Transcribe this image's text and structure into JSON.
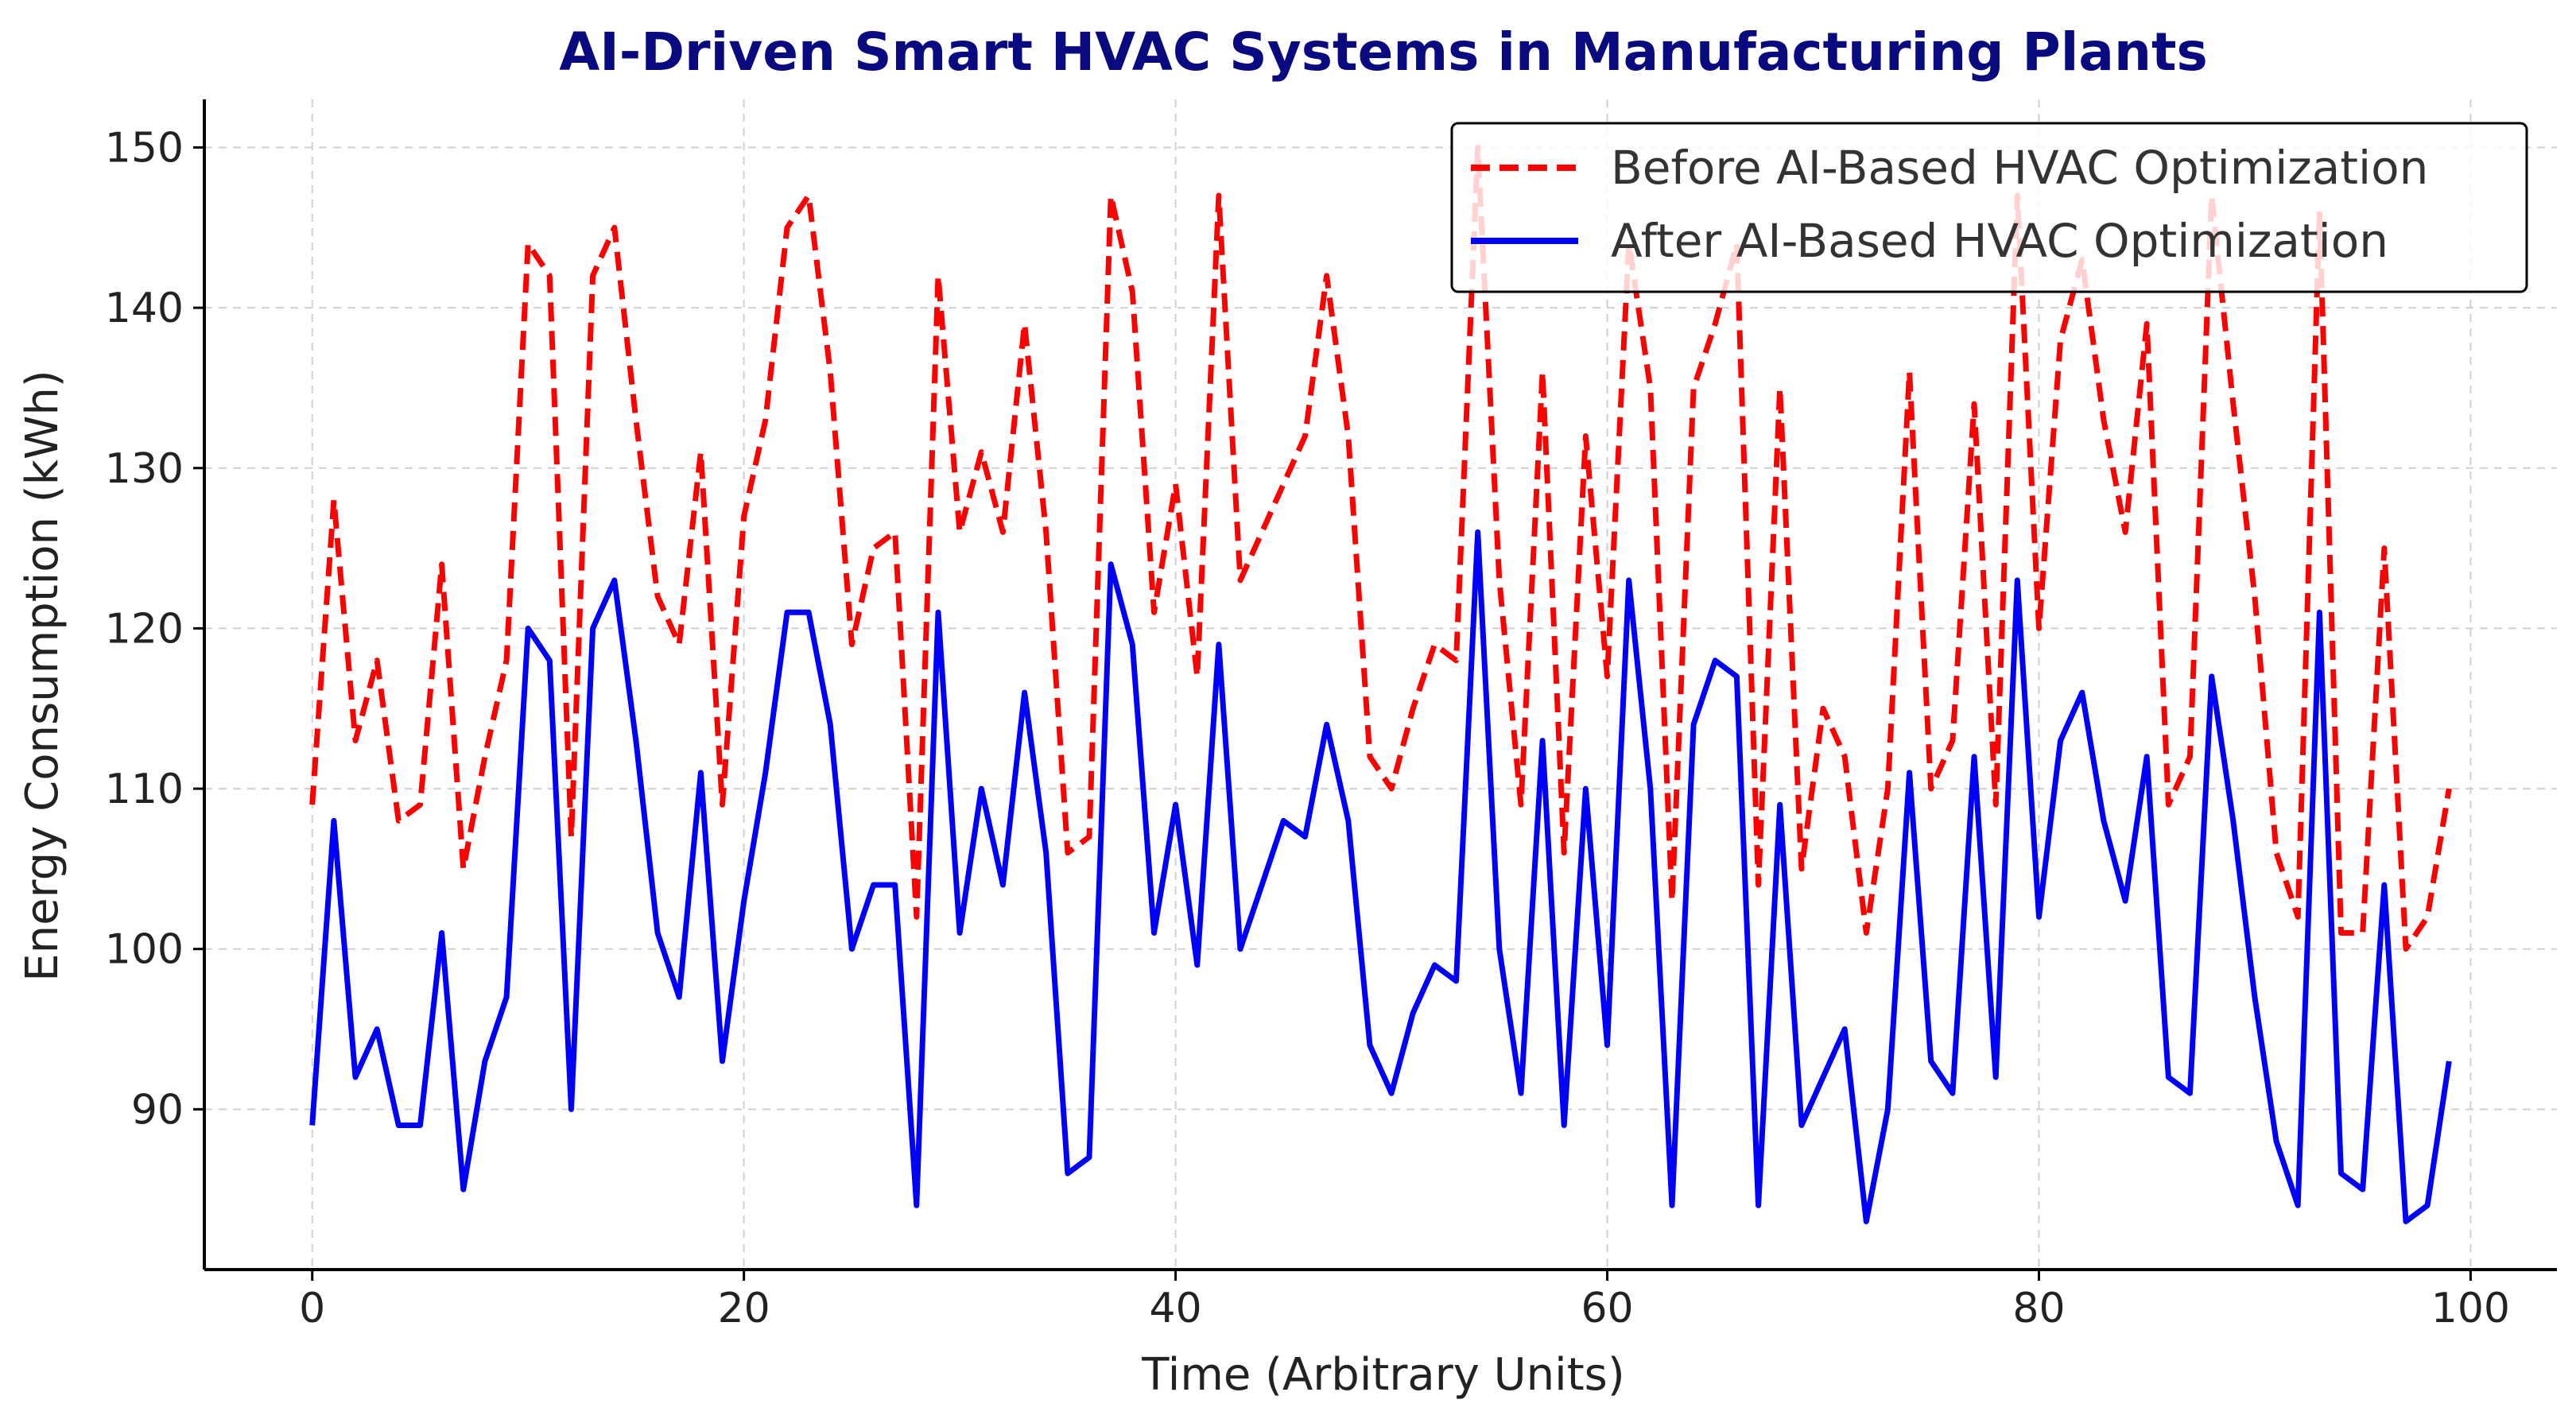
{
  "colors": {
    "title": "#0a0a80",
    "before": "#ff0000",
    "after": "#0000ff",
    "grid": "#d0d0d0",
    "axis": "#000000"
  },
  "chart_data": {
    "type": "line",
    "title": "AI-Driven Smart HVAC Systems in Manufacturing Plants",
    "xlabel": "Time (Arbitrary Units)",
    "ylabel": "Energy Consumption (kWh)",
    "xlim": [
      -5,
      104
    ],
    "ylim": [
      80,
      153
    ],
    "xticks": [
      0,
      20,
      40,
      60,
      80,
      100
    ],
    "yticks": [
      90,
      100,
      110,
      120,
      130,
      140,
      150
    ],
    "grid": true,
    "legend_position": "top-right",
    "series": [
      {
        "name": "Before AI-Based HVAC Optimization",
        "style": "dashed",
        "color": "#ff0000",
        "x": [
          0,
          1,
          2,
          3,
          4,
          5,
          6,
          7,
          8,
          9,
          10,
          11,
          12,
          13,
          14,
          15,
          16,
          17,
          18,
          19,
          20,
          21,
          22,
          23,
          24,
          25,
          26,
          27,
          28,
          29,
          30,
          31,
          32,
          33,
          34,
          35,
          36,
          37,
          38,
          39,
          40,
          41,
          42,
          43,
          44,
          45,
          46,
          47,
          48,
          49,
          50,
          51,
          52,
          53,
          54,
          55,
          56,
          57,
          58,
          59,
          60,
          61,
          62,
          63,
          64,
          65,
          66,
          67,
          68,
          69,
          70,
          71,
          72,
          73,
          74,
          75,
          76,
          77,
          78,
          79,
          80,
          81,
          82,
          83,
          84,
          85,
          86,
          87,
          88,
          89,
          90,
          91,
          92,
          93,
          94,
          95,
          96,
          97,
          98,
          99
        ],
        "values": [
          109,
          128,
          113,
          118,
          108,
          109,
          124,
          105,
          112,
          118,
          144,
          142,
          107,
          142,
          145,
          133,
          122,
          119,
          131,
          109,
          127,
          133,
          145,
          147,
          136,
          119,
          125,
          126,
          102,
          142,
          126,
          131,
          126,
          139,
          126,
          106,
          107,
          147,
          141,
          121,
          129,
          117,
          147,
          123,
          126,
          129,
          132,
          142,
          132,
          112,
          110,
          115,
          119,
          118,
          150,
          123,
          109,
          136,
          106,
          132,
          117,
          144,
          135,
          103,
          135,
          139,
          144,
          104,
          135,
          105,
          115,
          112,
          101,
          110,
          136,
          110,
          113,
          134,
          109,
          147,
          120,
          138,
          143,
          133,
          126,
          139,
          109,
          112,
          147,
          134,
          122,
          106,
          102,
          146,
          101,
          101,
          125,
          100,
          102,
          110
        ]
      },
      {
        "name": "After AI-Based HVAC Optimization",
        "style": "solid",
        "color": "#0000ff",
        "x": [
          0,
          1,
          2,
          3,
          4,
          5,
          6,
          7,
          8,
          9,
          10,
          11,
          12,
          13,
          14,
          15,
          16,
          17,
          18,
          19,
          20,
          21,
          22,
          23,
          24,
          25,
          26,
          27,
          28,
          29,
          30,
          31,
          32,
          33,
          34,
          35,
          36,
          37,
          38,
          39,
          40,
          41,
          42,
          43,
          44,
          45,
          46,
          47,
          48,
          49,
          50,
          51,
          52,
          53,
          54,
          55,
          56,
          57,
          58,
          59,
          60,
          61,
          62,
          63,
          64,
          65,
          66,
          67,
          68,
          69,
          70,
          71,
          72,
          73,
          74,
          75,
          76,
          77,
          78,
          79,
          80,
          81,
          82,
          83,
          84,
          85,
          86,
          87,
          88,
          89,
          90,
          91,
          92,
          93,
          94,
          95,
          96,
          97,
          98,
          99
        ],
        "values": [
          89,
          108,
          92,
          95,
          89,
          89,
          101,
          85,
          93,
          97,
          120,
          118,
          90,
          120,
          123,
          113,
          101,
          97,
          111,
          93,
          103,
          111,
          121,
          121,
          114,
          100,
          104,
          104,
          84,
          121,
          101,
          110,
          104,
          116,
          106,
          86,
          87,
          124,
          119,
          101,
          109,
          99,
          119,
          100,
          104,
          108,
          107,
          114,
          108,
          94,
          91,
          96,
          99,
          98,
          126,
          100,
          91,
          113,
          89,
          110,
          94,
          123,
          110,
          84,
          114,
          118,
          117,
          84,
          109,
          89,
          92,
          95,
          83,
          90,
          111,
          93,
          91,
          112,
          92,
          123,
          102,
          113,
          116,
          108,
          103,
          112,
          92,
          91,
          117,
          108,
          97,
          88,
          84,
          121,
          86,
          85,
          104,
          83,
          84,
          93
        ]
      }
    ]
  }
}
